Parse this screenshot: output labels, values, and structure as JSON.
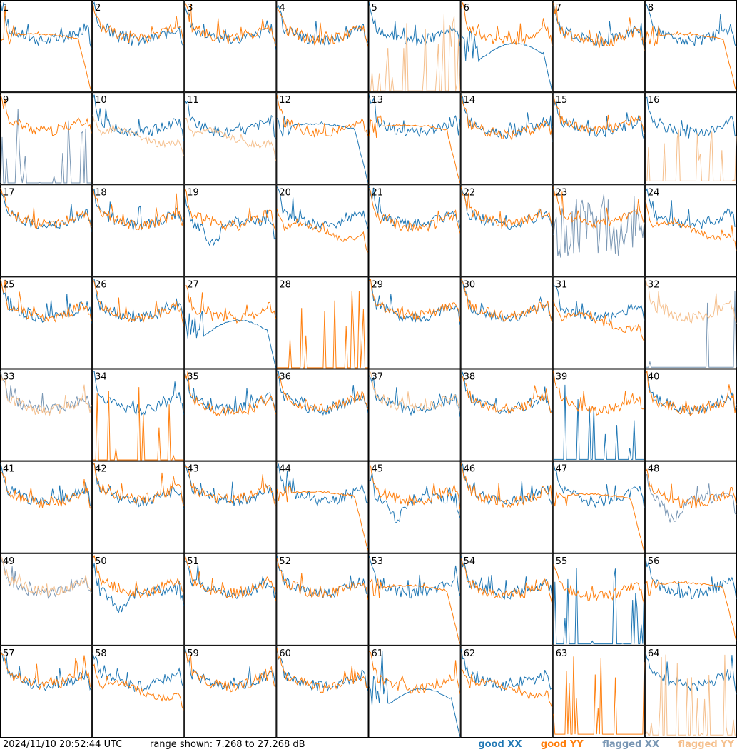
{
  "chart_data": {
    "type": "line",
    "title": "",
    "layout": "8x8 grid of small multiples",
    "ylim_db": [
      7.268,
      27.268
    ],
    "legend": [
      {
        "name": "good XX",
        "color": "#1f77b4"
      },
      {
        "name": "good YY",
        "color": "#ff7f0e"
      },
      {
        "name": "flagged XX",
        "color": "#7a97b4"
      },
      {
        "name": "flagged YY",
        "color": "#f5c08e"
      }
    ],
    "panels": [
      {
        "id": 1,
        "xx": "good",
        "yy": "good",
        "xx_shape": "bandpass",
        "yy_shape": "rolloff"
      },
      {
        "id": 2,
        "xx": "good",
        "yy": "good",
        "xx_shape": "bandpass",
        "yy_shape": "bandpass"
      },
      {
        "id": 3,
        "xx": "good",
        "yy": "good",
        "xx_shape": "bandpass",
        "yy_shape": "bandpass"
      },
      {
        "id": 4,
        "xx": "good",
        "yy": "good",
        "xx_shape": "bandpass",
        "yy_shape": "bandpass"
      },
      {
        "id": 5,
        "xx": "good",
        "yy": "flagged",
        "xx_shape": "bandpass",
        "yy_shape": "spikes"
      },
      {
        "id": 6,
        "xx": "good",
        "yy": "good",
        "xx_shape": "hump",
        "yy_shape": "bandpass"
      },
      {
        "id": 7,
        "xx": "good",
        "yy": "good",
        "xx_shape": "bandpass",
        "yy_shape": "bandpass"
      },
      {
        "id": 8,
        "xx": "good",
        "yy": "good",
        "xx_shape": "bandpass",
        "yy_shape": "rolloff"
      },
      {
        "id": 9,
        "xx": "flagged",
        "yy": "good",
        "xx_shape": "spikes",
        "yy_shape": "bandpass"
      },
      {
        "id": 10,
        "xx": "good",
        "yy": "flagged",
        "xx_shape": "bandpass",
        "yy_shape": "low"
      },
      {
        "id": 11,
        "xx": "good",
        "yy": "flagged",
        "xx_shape": "bandpass",
        "yy_shape": "low"
      },
      {
        "id": 12,
        "xx": "good",
        "yy": "good",
        "xx_shape": "rolloff",
        "yy_shape": "bandpass"
      },
      {
        "id": 13,
        "xx": "good",
        "yy": "good",
        "xx_shape": "bandpass",
        "yy_shape": "rolloff"
      },
      {
        "id": 14,
        "xx": "good",
        "yy": "good",
        "xx_shape": "bandpass",
        "yy_shape": "bandpass"
      },
      {
        "id": 15,
        "xx": "good",
        "yy": "good",
        "xx_shape": "bandpass",
        "yy_shape": "bandpass"
      },
      {
        "id": 16,
        "xx": "good",
        "yy": "flagged",
        "xx_shape": "bandpass",
        "yy_shape": "spikes"
      },
      {
        "id": 17,
        "xx": "good",
        "yy": "good",
        "xx_shape": "bandpass",
        "yy_shape": "bandpass"
      },
      {
        "id": 18,
        "xx": "good",
        "yy": "good",
        "xx_shape": "bandpass",
        "yy_shape": "bandpass"
      },
      {
        "id": 19,
        "xx": "good",
        "yy": "good",
        "xx_shape": "dip",
        "yy_shape": "bandpass"
      },
      {
        "id": 20,
        "xx": "good",
        "yy": "good",
        "xx_shape": "bandpass",
        "yy_shape": "low"
      },
      {
        "id": 21,
        "xx": "good",
        "yy": "good",
        "xx_shape": "bandpass",
        "yy_shape": "bandpass"
      },
      {
        "id": 22,
        "xx": "good",
        "yy": "good",
        "xx_shape": "bandpass",
        "yy_shape": "bandpass"
      },
      {
        "id": 23,
        "xx": "flagged",
        "yy": "good",
        "xx_shape": "noise",
        "yy_shape": "bandpass"
      },
      {
        "id": 24,
        "xx": "good",
        "yy": "good",
        "xx_shape": "bandpass",
        "yy_shape": "low"
      },
      {
        "id": 25,
        "xx": "good",
        "yy": "good",
        "xx_shape": "bandpass",
        "yy_shape": "bandpass"
      },
      {
        "id": 26,
        "xx": "good",
        "yy": "good",
        "xx_shape": "bandpass",
        "yy_shape": "bandpass"
      },
      {
        "id": 27,
        "xx": "good",
        "yy": "good",
        "xx_shape": "hump",
        "yy_shape": "bandpass"
      },
      {
        "id": 28,
        "xx": "flagged",
        "yy": "good",
        "xx_shape": "none",
        "yy_shape": "spikes"
      },
      {
        "id": 29,
        "xx": "good",
        "yy": "good",
        "xx_shape": "bandpass",
        "yy_shape": "bandpass"
      },
      {
        "id": 30,
        "xx": "good",
        "yy": "good",
        "xx_shape": "bandpass",
        "yy_shape": "bandpass"
      },
      {
        "id": 31,
        "xx": "good",
        "yy": "good",
        "xx_shape": "bandpass",
        "yy_shape": "low"
      },
      {
        "id": 32,
        "xx": "flagged",
        "yy": "flagged",
        "xx_shape": "spikes",
        "yy_shape": "bandpass"
      },
      {
        "id": 33,
        "xx": "flagged",
        "yy": "flagged",
        "xx_shape": "bandpass",
        "yy_shape": "bandpass"
      },
      {
        "id": 34,
        "xx": "good",
        "yy": "good",
        "xx_shape": "bandpass",
        "yy_shape": "spikes"
      },
      {
        "id": 35,
        "xx": "good",
        "yy": "good",
        "xx_shape": "bandpass",
        "yy_shape": "bandpass"
      },
      {
        "id": 36,
        "xx": "good",
        "yy": "good",
        "xx_shape": "bandpass",
        "yy_shape": "bandpass"
      },
      {
        "id": 37,
        "xx": "good",
        "yy": "flagged",
        "xx_shape": "bandpass",
        "yy_shape": "bandpass"
      },
      {
        "id": 38,
        "xx": "good",
        "yy": "good",
        "xx_shape": "bandpass",
        "yy_shape": "bandpass"
      },
      {
        "id": 39,
        "xx": "good",
        "yy": "good",
        "xx_shape": "spikes",
        "yy_shape": "bandpass"
      },
      {
        "id": 40,
        "xx": "good",
        "yy": "good",
        "xx_shape": "bandpass",
        "yy_shape": "bandpass"
      },
      {
        "id": 41,
        "xx": "good",
        "yy": "good",
        "xx_shape": "bandpass",
        "yy_shape": "bandpass"
      },
      {
        "id": 42,
        "xx": "good",
        "yy": "good",
        "xx_shape": "bandpass",
        "yy_shape": "bandpass"
      },
      {
        "id": 43,
        "xx": "good",
        "yy": "good",
        "xx_shape": "bandpass",
        "yy_shape": "bandpass"
      },
      {
        "id": 44,
        "xx": "good",
        "yy": "good",
        "xx_shape": "bandpass",
        "yy_shape": "rolloff"
      },
      {
        "id": 45,
        "xx": "good",
        "yy": "good",
        "xx_shape": "dip",
        "yy_shape": "bandpass"
      },
      {
        "id": 46,
        "xx": "good",
        "yy": "good",
        "xx_shape": "bandpass",
        "yy_shape": "bandpass"
      },
      {
        "id": 47,
        "xx": "good",
        "yy": "good",
        "xx_shape": "bandpass",
        "yy_shape": "rolloff"
      },
      {
        "id": 48,
        "xx": "flagged",
        "yy": "good",
        "xx_shape": "dip",
        "yy_shape": "bandpass"
      },
      {
        "id": 49,
        "xx": "flagged",
        "yy": "flagged",
        "xx_shape": "bandpass",
        "yy_shape": "bandpass"
      },
      {
        "id": 50,
        "xx": "good",
        "yy": "good",
        "xx_shape": "dip",
        "yy_shape": "bandpass"
      },
      {
        "id": 51,
        "xx": "good",
        "yy": "good",
        "xx_shape": "bandpass",
        "yy_shape": "bandpass"
      },
      {
        "id": 52,
        "xx": "good",
        "yy": "good",
        "xx_shape": "bandpass",
        "yy_shape": "bandpass"
      },
      {
        "id": 53,
        "xx": "good",
        "yy": "good",
        "xx_shape": "bandpass",
        "yy_shape": "rolloff"
      },
      {
        "id": 54,
        "xx": "good",
        "yy": "good",
        "xx_shape": "bandpass",
        "yy_shape": "bandpass"
      },
      {
        "id": 55,
        "xx": "good",
        "yy": "good",
        "xx_shape": "spikes",
        "yy_shape": "bandpass"
      },
      {
        "id": 56,
        "xx": "good",
        "yy": "good",
        "xx_shape": "bandpass",
        "yy_shape": "rolloff"
      },
      {
        "id": 57,
        "xx": "good",
        "yy": "good",
        "xx_shape": "bandpass",
        "yy_shape": "bandpass"
      },
      {
        "id": 58,
        "xx": "good",
        "yy": "good",
        "xx_shape": "bandpass",
        "yy_shape": "low"
      },
      {
        "id": 59,
        "xx": "good",
        "yy": "good",
        "xx_shape": "bandpass",
        "yy_shape": "bandpass"
      },
      {
        "id": 60,
        "xx": "good",
        "yy": "good",
        "xx_shape": "bandpass",
        "yy_shape": "bandpass"
      },
      {
        "id": 61,
        "xx": "good",
        "yy": "good",
        "xx_shape": "hump",
        "yy_shape": "bandpass"
      },
      {
        "id": 62,
        "xx": "good",
        "yy": "good",
        "xx_shape": "bandpass",
        "yy_shape": "low"
      },
      {
        "id": 63,
        "xx": "good",
        "yy": "good",
        "xx_shape": "none",
        "yy_shape": "spikes"
      },
      {
        "id": 64,
        "xx": "good",
        "yy": "flagged",
        "xx_shape": "bandpass",
        "yy_shape": "spikes"
      }
    ]
  },
  "footer": {
    "timestamp": "2024/11/10 20:52:44 UTC",
    "range": "range shown: 7.268 to 27.268 dB"
  },
  "legend_labels": {
    "good_xx": "good XX",
    "good_yy": "good YY",
    "flagged_xx": "flagged XX",
    "flagged_yy": "flagged YY"
  }
}
